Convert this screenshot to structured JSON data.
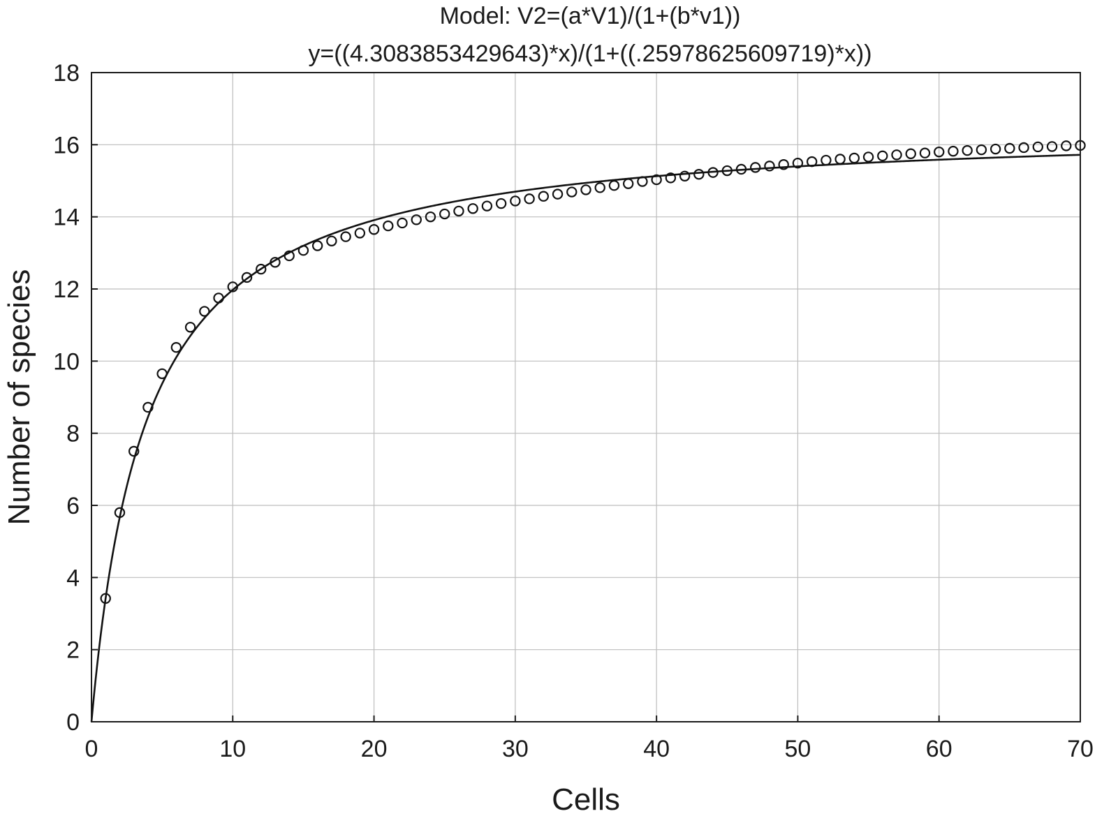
{
  "chart_data": {
    "type": "scatter",
    "title": "Model: V2=(a*V1)/(1+(b*v1))",
    "subtitle": "y=((4.3083853429643)*x)/(1+((.25978625609719)*x))",
    "xlabel": "Cells",
    "ylabel": "Number of species",
    "xlim": [
      0,
      70
    ],
    "ylim": [
      0,
      18
    ],
    "x_ticks": [
      "0",
      "10",
      "20",
      "30",
      "40",
      "50",
      "60",
      "70"
    ],
    "y_ticks": [
      "0",
      "2",
      "4",
      "6",
      "8",
      "10",
      "12",
      "14",
      "16",
      "18"
    ],
    "grid": true,
    "fit": {
      "a": 4.3083853429643,
      "b": 0.25978625609719
    },
    "series": [
      {
        "marker": "circle",
        "x": [
          1,
          2,
          3,
          4,
          5,
          6,
          7,
          8,
          9,
          10,
          11,
          12,
          13,
          14,
          15,
          16,
          17,
          18,
          19,
          20,
          21,
          22,
          23,
          24,
          25,
          26,
          27,
          28,
          29,
          30,
          31,
          32,
          33,
          34,
          35,
          36,
          37,
          38,
          39,
          40,
          41,
          42,
          43,
          44,
          45,
          46,
          47,
          48,
          49,
          50,
          51,
          52,
          53,
          54,
          55,
          56,
          57,
          58,
          59,
          60,
          61,
          62,
          63,
          64,
          65,
          66,
          67,
          68,
          69,
          70
        ],
        "y": [
          3.42,
          5.8,
          7.5,
          8.72,
          9.65,
          10.38,
          10.94,
          11.38,
          11.75,
          12.06,
          12.32,
          12.55,
          12.74,
          12.92,
          13.07,
          13.2,
          13.33,
          13.45,
          13.55,
          13.65,
          13.75,
          13.83,
          13.92,
          14.0,
          14.08,
          14.16,
          14.23,
          14.3,
          14.37,
          14.44,
          14.5,
          14.57,
          14.63,
          14.69,
          14.75,
          14.81,
          14.87,
          14.92,
          14.98,
          15.03,
          15.08,
          15.13,
          15.18,
          15.23,
          15.28,
          15.32,
          15.37,
          15.41,
          15.45,
          15.49,
          15.53,
          15.57,
          15.6,
          15.63,
          15.66,
          15.69,
          15.72,
          15.75,
          15.77,
          15.8,
          15.82,
          15.84,
          15.86,
          15.88,
          15.9,
          15.92,
          15.94,
          15.95,
          15.97,
          15.98
        ]
      }
    ]
  }
}
